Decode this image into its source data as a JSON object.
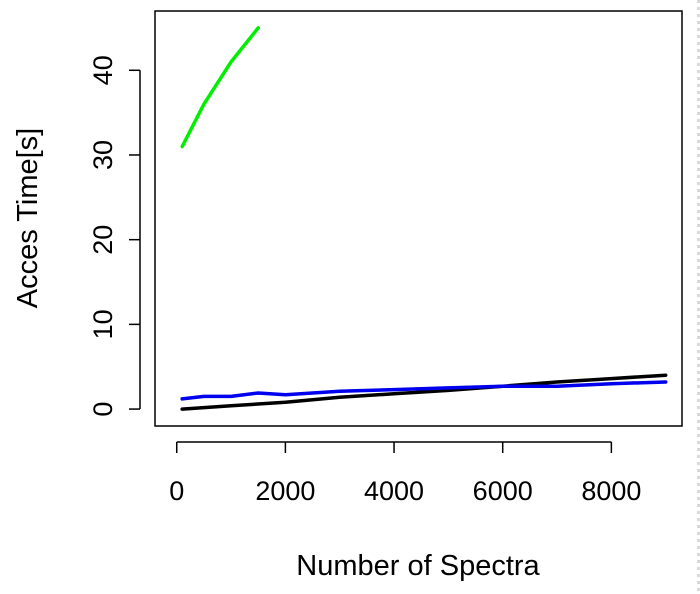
{
  "chart_data": {
    "type": "line",
    "title": "",
    "xlabel": "Number of Spectra",
    "ylabel": "Acces Time[s]",
    "xlim": [
      -400,
      9300
    ],
    "ylim": [
      -2,
      47
    ],
    "xticks": [
      0,
      2000,
      4000,
      6000,
      8000
    ],
    "xtick_labels": [
      "0",
      "2000",
      "4000",
      "6000",
      "8000"
    ],
    "yticks": [
      0,
      10,
      20,
      30,
      40
    ],
    "ytick_labels": [
      "0",
      "10",
      "20",
      "30",
      "40"
    ],
    "grid": false,
    "series": [
      {
        "color": "#00ee00",
        "x": [
          100,
          500,
          1000,
          1500
        ],
        "y": [
          31,
          36,
          41,
          45
        ]
      },
      {
        "color": "#000000",
        "x": [
          100,
          1000,
          2000,
          3000,
          4000,
          5000,
          6000,
          7000,
          8000,
          9000
        ],
        "y": [
          0,
          0.4,
          0.8,
          1.4,
          1.8,
          2.2,
          2.7,
          3.2,
          3.6,
          4.0
        ]
      },
      {
        "color": "#0000ee",
        "x": [
          100,
          500,
          1000,
          1500,
          2000,
          3000,
          4000,
          5000,
          6000,
          7000,
          8000,
          9000
        ],
        "y": [
          1.2,
          1.5,
          1.5,
          1.9,
          1.7,
          2.1,
          2.3,
          2.5,
          2.7,
          2.7,
          3.0,
          3.2
        ]
      }
    ]
  }
}
